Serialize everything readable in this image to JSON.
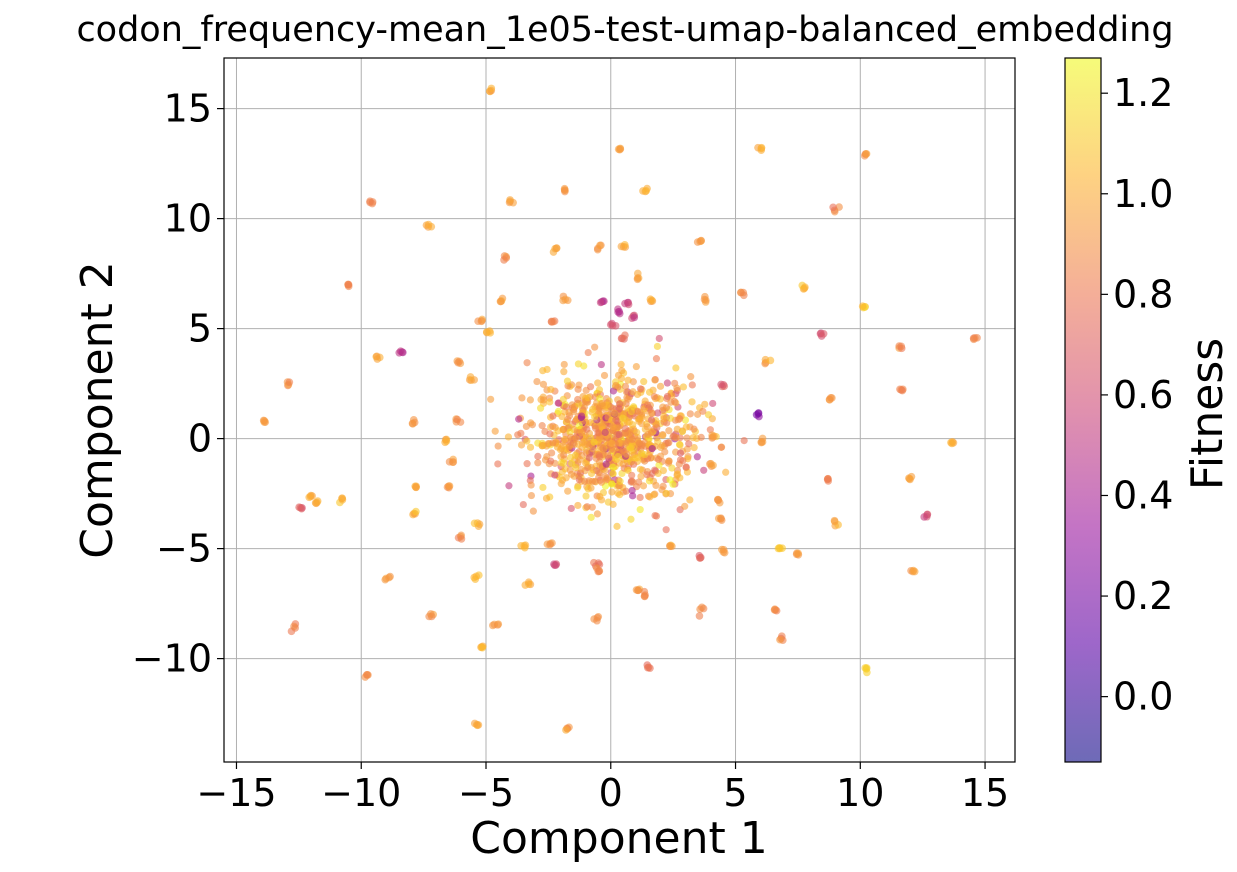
{
  "chart_data": {
    "type": "scatter",
    "title": "codon_frequency-mean_1e05-test-umap-balanced_embedding",
    "xlabel": "Component 1",
    "ylabel": "Component 2",
    "xlim": [
      -15.5,
      16.2
    ],
    "ylim": [
      -14.7,
      17.3
    ],
    "xticks": [
      -15,
      -10,
      -5,
      0,
      5,
      10,
      15
    ],
    "xtick_labels": [
      "−15",
      "−10",
      "−5",
      "0",
      "5",
      "10",
      "15"
    ],
    "yticks": [
      -10,
      -5,
      0,
      5,
      10,
      15
    ],
    "ytick_labels": [
      "−10",
      "−5",
      "0",
      "5",
      "10",
      "15"
    ],
    "grid": true,
    "colorbar": {
      "label": "Fitness",
      "colormap": "plasma",
      "range": [
        -0.13,
        1.27
      ],
      "ticks": [
        0.0,
        0.2,
        0.4,
        0.6,
        0.8,
        1.0,
        1.2
      ],
      "tick_labels": [
        "0.0",
        "0.2",
        "0.4",
        "0.6",
        "0.8",
        "1.0",
        "1.2"
      ]
    },
    "colors": {
      "stops": [
        "#0d0887",
        "#5c01a6",
        "#9c179e",
        "#cc4778",
        "#ed7953",
        "#fdb42f",
        "#f0f921"
      ],
      "alpha": 0.6
    },
    "clusters": [
      {
        "x": -4.8,
        "y": 15.8,
        "value": 1.0
      },
      {
        "x": 0.4,
        "y": 13.2,
        "value": 0.95
      },
      {
        "x": 6.0,
        "y": 13.2,
        "value": 1.0
      },
      {
        "x": 10.2,
        "y": 12.9,
        "value": 0.9
      },
      {
        "x": -1.9,
        "y": 11.3,
        "value": 0.9
      },
      {
        "x": 1.4,
        "y": 11.3,
        "value": 1.0
      },
      {
        "x": -9.6,
        "y": 10.7,
        "value": 0.85
      },
      {
        "x": -4.0,
        "y": 10.8,
        "value": 0.95
      },
      {
        "x": 9.0,
        "y": 10.4,
        "value": 0.85
      },
      {
        "x": -7.3,
        "y": 9.7,
        "value": 1.0
      },
      {
        "x": 3.6,
        "y": 9.0,
        "value": 0.95
      },
      {
        "x": -2.2,
        "y": 8.6,
        "value": 0.95
      },
      {
        "x": -0.5,
        "y": 8.7,
        "value": 0.9
      },
      {
        "x": 0.5,
        "y": 8.7,
        "value": 1.0
      },
      {
        "x": -4.2,
        "y": 8.2,
        "value": 0.85
      },
      {
        "x": 1.1,
        "y": 7.4,
        "value": 0.95
      },
      {
        "x": -10.5,
        "y": 6.9,
        "value": 0.85
      },
      {
        "x": 7.7,
        "y": 6.9,
        "value": 1.0
      },
      {
        "x": 5.3,
        "y": 6.6,
        "value": 0.9
      },
      {
        "x": 10.2,
        "y": 6.0,
        "value": 1.1
      },
      {
        "x": -4.4,
        "y": 6.2,
        "value": 0.95
      },
      {
        "x": -1.8,
        "y": 6.3,
        "value": 0.95
      },
      {
        "x": 3.8,
        "y": 6.3,
        "value": 0.95
      },
      {
        "x": 1.6,
        "y": 6.3,
        "value": 1.0
      },
      {
        "x": -5.2,
        "y": 5.4,
        "value": 0.95
      },
      {
        "x": -2.4,
        "y": 5.3,
        "value": 0.85
      },
      {
        "x": 8.5,
        "y": 4.8,
        "value": 0.6
      },
      {
        "x": 14.7,
        "y": 4.5,
        "value": 0.85
      },
      {
        "x": -4.9,
        "y": 4.8,
        "value": 1.0
      },
      {
        "x": 11.6,
        "y": 4.1,
        "value": 0.85
      },
      {
        "x": -9.4,
        "y": 3.7,
        "value": 1.0
      },
      {
        "x": -8.4,
        "y": 3.9,
        "value": 0.45
      },
      {
        "x": 6.3,
        "y": 3.5,
        "value": 0.95
      },
      {
        "x": -6.1,
        "y": 3.5,
        "value": 0.9
      },
      {
        "x": -12.9,
        "y": 2.5,
        "value": 0.9
      },
      {
        "x": -5.6,
        "y": 2.7,
        "value": 0.95
      },
      {
        "x": 4.5,
        "y": 2.4,
        "value": 0.7
      },
      {
        "x": 11.7,
        "y": 2.2,
        "value": 0.85
      },
      {
        "x": 8.8,
        "y": 1.8,
        "value": 0.9
      },
      {
        "x": 5.9,
        "y": 1.1,
        "value": 0.25
      },
      {
        "x": -13.9,
        "y": 0.8,
        "value": 0.95
      },
      {
        "x": -7.9,
        "y": 0.7,
        "value": 0.95
      },
      {
        "x": -6.1,
        "y": 0.8,
        "value": 0.9
      },
      {
        "x": 4.1,
        "y": 0.1,
        "value": 0.95
      },
      {
        "x": 6.1,
        "y": -0.1,
        "value": 0.95
      },
      {
        "x": 13.7,
        "y": -0.2,
        "value": 1.0
      },
      {
        "x": -6.6,
        "y": -0.1,
        "value": 1.0
      },
      {
        "x": -6.4,
        "y": -1.1,
        "value": 0.95
      },
      {
        "x": 4.0,
        "y": -1.2,
        "value": 0.95
      },
      {
        "x": 12.0,
        "y": -1.8,
        "value": 0.95
      },
      {
        "x": 8.7,
        "y": -1.9,
        "value": 0.85
      },
      {
        "x": -7.8,
        "y": -2.2,
        "value": 1.0
      },
      {
        "x": -6.5,
        "y": -2.2,
        "value": 0.9
      },
      {
        "x": 4.3,
        "y": -2.8,
        "value": 0.9
      },
      {
        "x": -12.0,
        "y": -2.6,
        "value": 1.0
      },
      {
        "x": -12.4,
        "y": -3.1,
        "value": 0.7
      },
      {
        "x": -11.8,
        "y": -2.9,
        "value": 0.95
      },
      {
        "x": -10.8,
        "y": -2.8,
        "value": 1.05
      },
      {
        "x": -7.9,
        "y": -3.4,
        "value": 1.0
      },
      {
        "x": 4.4,
        "y": -3.6,
        "value": 0.9
      },
      {
        "x": 9.0,
        "y": -3.8,
        "value": 0.95
      },
      {
        "x": 12.6,
        "y": -3.5,
        "value": 0.6
      },
      {
        "x": -5.3,
        "y": -3.9,
        "value": 1.0
      },
      {
        "x": -6.0,
        "y": -4.5,
        "value": 0.9
      },
      {
        "x": -3.5,
        "y": -4.9,
        "value": 1.0
      },
      {
        "x": -2.4,
        "y": -4.8,
        "value": 0.95
      },
      {
        "x": 2.4,
        "y": -4.9,
        "value": 0.95
      },
      {
        "x": 4.5,
        "y": -5.1,
        "value": 0.95
      },
      {
        "x": 3.6,
        "y": -5.4,
        "value": 0.7
      },
      {
        "x": 6.8,
        "y": -5.0,
        "value": 1.05
      },
      {
        "x": 7.5,
        "y": -5.2,
        "value": 0.95
      },
      {
        "x": -2.2,
        "y": -5.7,
        "value": 0.6
      },
      {
        "x": -0.6,
        "y": -5.7,
        "value": 0.75
      },
      {
        "x": -0.5,
        "y": -6.0,
        "value": 0.9
      },
      {
        "x": 12.1,
        "y": -6.0,
        "value": 0.95
      },
      {
        "x": -3.3,
        "y": -6.6,
        "value": 0.95
      },
      {
        "x": -5.4,
        "y": -6.3,
        "value": 1.05
      },
      {
        "x": -9.0,
        "y": -6.3,
        "value": 0.9
      },
      {
        "x": 1.1,
        "y": -6.9,
        "value": 0.95
      },
      {
        "x": 1.3,
        "y": -7.1,
        "value": 0.85
      },
      {
        "x": 3.6,
        "y": -7.9,
        "value": 0.85
      },
      {
        "x": 6.6,
        "y": -7.8,
        "value": 0.85
      },
      {
        "x": -7.2,
        "y": -8.0,
        "value": 0.9
      },
      {
        "x": -0.5,
        "y": -8.2,
        "value": 0.9
      },
      {
        "x": -4.6,
        "y": -8.5,
        "value": 0.9
      },
      {
        "x": -12.7,
        "y": -8.6,
        "value": 0.85
      },
      {
        "x": 6.8,
        "y": -9.1,
        "value": 0.85
      },
      {
        "x": -5.2,
        "y": -9.5,
        "value": 1.0
      },
      {
        "x": 1.5,
        "y": -10.4,
        "value": 0.8
      },
      {
        "x": 10.2,
        "y": -10.5,
        "value": 1.1
      },
      {
        "x": -9.8,
        "y": -10.8,
        "value": 0.9
      },
      {
        "x": -5.3,
        "y": -13.0,
        "value": 1.0
      },
      {
        "x": -1.7,
        "y": -13.2,
        "value": 0.9
      },
      {
        "x": 0.3,
        "y": 5.8,
        "value": 0.45
      },
      {
        "x": 0.7,
        "y": 6.1,
        "value": 0.55
      },
      {
        "x": 0.1,
        "y": 5.2,
        "value": 0.65
      },
      {
        "x": 0.9,
        "y": 5.5,
        "value": 0.6
      },
      {
        "x": -0.3,
        "y": 6.3,
        "value": 0.5
      },
      {
        "x": 0.5,
        "y": 4.6,
        "value": 0.75
      }
    ],
    "core": {
      "center": [
        0.0,
        0.0
      ],
      "spread": [
        1.6,
        1.4
      ],
      "count": 900,
      "value_mean": 0.95
    }
  }
}
